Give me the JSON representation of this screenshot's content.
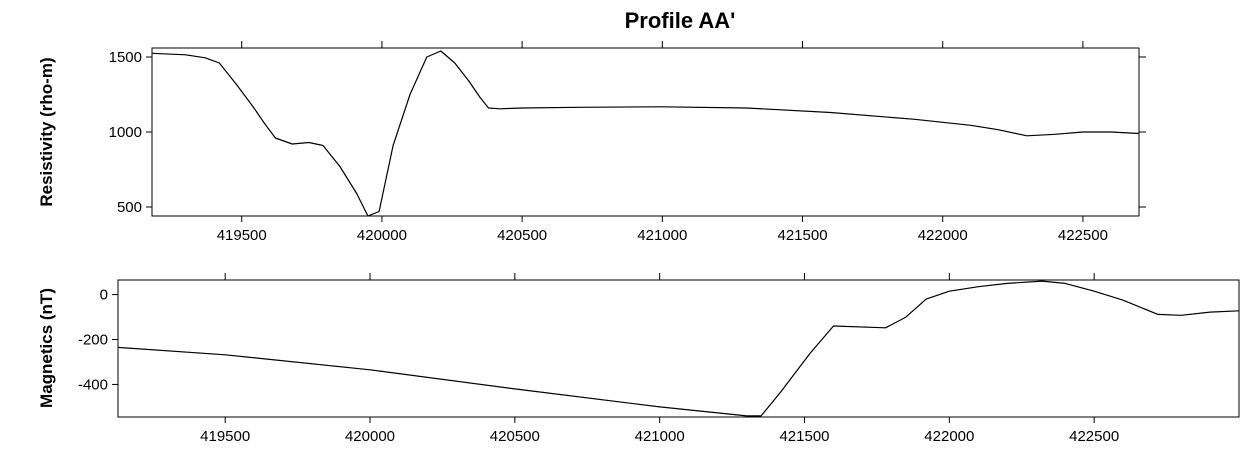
{
  "chart_data": [
    {
      "type": "line",
      "title": "Profile AA'",
      "xlabel": "",
      "ylabel": "Resistivity (rho-m)",
      "xlim": [
        419180,
        422700
      ],
      "ylim": [
        440,
        1560
      ],
      "x_ticks": [
        419500,
        420000,
        420500,
        421000,
        421500,
        422000,
        422500
      ],
      "x_tick_labels": [
        "419500",
        "420000",
        "420500",
        "421000",
        "421500",
        "422000",
        "422500"
      ],
      "top_ticks": [
        419500,
        420000,
        420500,
        421000,
        421500,
        422000,
        422500
      ],
      "y_ticks": [
        500,
        1000,
        1500
      ],
      "y_tick_labels": [
        "500",
        "1000",
        "1500"
      ],
      "grid": false,
      "series": [
        {
          "x": [
            419180,
            419300,
            419370,
            419420,
            419480,
            419540,
            419580,
            419620,
            419680,
            419740,
            419790,
            419850,
            419910,
            419950,
            419990,
            420040,
            420100,
            420160,
            420210,
            420260,
            420310,
            420350,
            420380,
            420420,
            420500,
            420700,
            421000,
            421300,
            421600,
            421900,
            422100,
            422200,
            422300,
            422400,
            422500,
            422600,
            422700
          ],
          "y": [
            1525,
            1515,
            1495,
            1460,
            1320,
            1170,
            1060,
            960,
            920,
            930,
            910,
            770,
            590,
            440,
            470,
            910,
            1250,
            1500,
            1540,
            1460,
            1340,
            1230,
            1160,
            1155,
            1160,
            1165,
            1168,
            1160,
            1130,
            1085,
            1045,
            1015,
            975,
            985,
            1000,
            1000,
            990
          ]
        }
      ]
    },
    {
      "type": "line",
      "xlabel": "",
      "ylabel": "Magnetics (nT)",
      "xlim": [
        419130,
        423000
      ],
      "ylim": [
        -545,
        65
      ],
      "x_ticks": [
        419500,
        420000,
        420500,
        421000,
        421500,
        422000,
        422500
      ],
      "x_tick_labels": [
        "419500",
        "420000",
        "420500",
        "421000",
        "421500",
        "422000",
        "422500"
      ],
      "top_ticks": [
        419500,
        420000,
        420500,
        421000,
        421500,
        422000,
        422500
      ],
      "y_ticks": [
        -400,
        -200,
        0
      ],
      "y_tick_labels": [
        "-400",
        "-200",
        "0"
      ],
      "grid": false,
      "series": [
        {
          "x": [
            419130,
            419500,
            420000,
            420500,
            421000,
            421300,
            421350,
            421420,
            421520,
            421600,
            421780,
            421850,
            421920,
            422000,
            422100,
            422200,
            422320,
            422400,
            422500,
            422600,
            422720,
            422800,
            422900,
            423000
          ],
          "y": [
            -235,
            -268,
            -335,
            -420,
            -500,
            -540,
            -540,
            -430,
            -260,
            -140,
            -148,
            -100,
            -20,
            15,
            35,
            50,
            60,
            50,
            15,
            -25,
            -88,
            -92,
            -78,
            -72
          ]
        }
      ]
    }
  ]
}
